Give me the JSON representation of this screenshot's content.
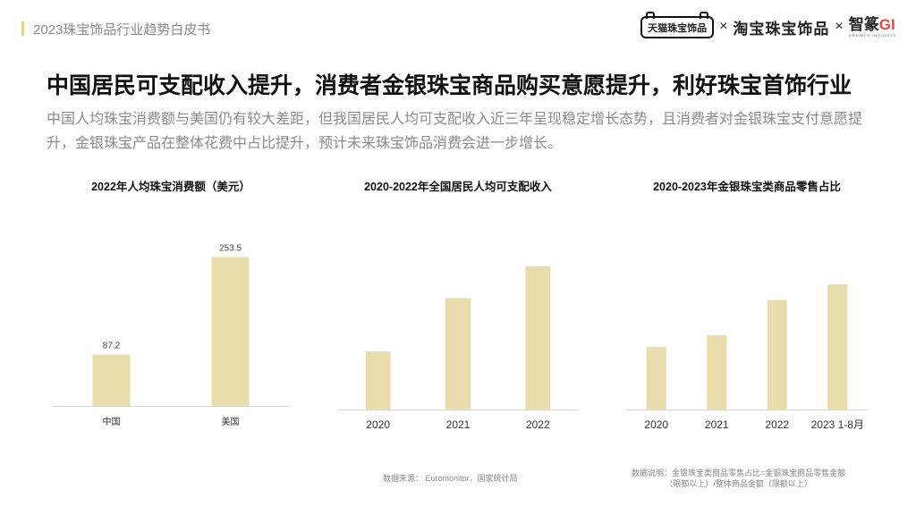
{
  "header": {
    "doc_title": "2023珠宝饰品行业趋势白皮书",
    "logos": {
      "tmall": "天猫珠宝饰品",
      "separator": "×",
      "taobao": "淘宝珠宝饰品",
      "gi_main": "智篆",
      "gi_g": "GI",
      "gi_sub": "GROWTH INSIGHTS"
    }
  },
  "headline": "中国居民可支配收入提升，消费者金银珠宝商品购买意愿提升，利好珠宝首饰行业",
  "subtitle": "中国人均珠宝消费额与美国仍有较大差距，但我国居民人均可支配收入近三年呈现稳定增长态势，且消费者对金银珠宝支付意愿提升，金银珠宝产品在整体花费中占比提升，预计未来珠宝饰品消费会进一步增长。",
  "colors": {
    "bar": "#e9dcad",
    "axis": "#d6d6d6",
    "accent": "#e6cf8f"
  },
  "chart_data": [
    {
      "type": "bar",
      "title": "2022年人均珠宝消费额（美元）",
      "categories": [
        "中国",
        "美国"
      ],
      "values": [
        87.2,
        253.5
      ],
      "labels": [
        "87.2",
        "253.5"
      ],
      "ylim": [
        0,
        300
      ],
      "grid": false,
      "xlabel": "",
      "ylabel": ""
    },
    {
      "type": "bar",
      "title": "2020-2022年全国居民人均可支配收入",
      "categories": [
        "2020",
        "2021",
        "2022"
      ],
      "values": [
        32189,
        35128,
        36883
      ],
      "ylim": [
        29000,
        38000
      ],
      "grid": false,
      "xlabel": "",
      "ylabel": ""
    },
    {
      "type": "bar",
      "title": "2020-2023年金银珠宝类商品零售占比",
      "categories": [
        "2020",
        "2021",
        "2022",
        "2023 1-8月"
      ],
      "values": [
        0.76,
        0.79,
        0.88,
        0.92
      ],
      "ylim": [
        0.6,
        1.0
      ],
      "grid": false,
      "xlabel": "",
      "ylabel": ""
    }
  ],
  "footnotes": {
    "source": "数据来源： Euromonitor，国家统计局",
    "note_line1": "数据说明：金银珠宝类商品零售占比=金银珠宝商品零售金额",
    "note_line2": "（限额以上）/整体商品金额（限额以上）"
  }
}
